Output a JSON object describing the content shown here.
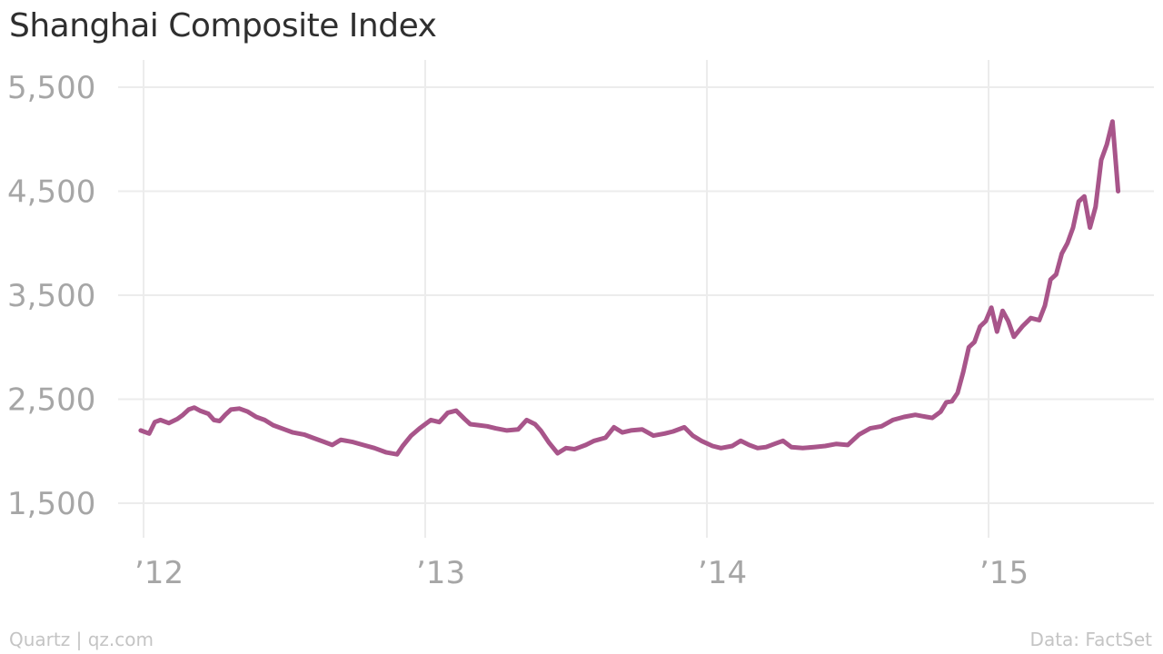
{
  "title": "Shanghai Composite Index",
  "footer": {
    "source_left": "Quartz | qz.com",
    "source_right": "Data: FactSet"
  },
  "colors": {
    "line": "#a8558a",
    "grid": "#ececec",
    "tick_text": "#a6a6a6",
    "title_text": "#2f2f2f"
  },
  "chart_data": {
    "type": "line",
    "title": "Shanghai Composite Index",
    "xlabel": "",
    "ylabel": "",
    "y_ticks": [
      {
        "value": 1500,
        "label": "1,500"
      },
      {
        "value": 2500,
        "label": "2,500"
      },
      {
        "value": 3500,
        "label": "3,500"
      },
      {
        "value": 4500,
        "label": "4,500"
      },
      {
        "value": 5500,
        "label": "5,500"
      }
    ],
    "x_ticks": [
      {
        "value": 2012.0,
        "label": "’12"
      },
      {
        "value": 2013.0,
        "label": "’13"
      },
      {
        "value": 2014.0,
        "label": "’14"
      },
      {
        "value": 2015.0,
        "label": "’15"
      }
    ],
    "ylim": [
      1500,
      5500
    ],
    "grid": true,
    "legend": "none",
    "series": [
      {
        "x": [
          2011.99,
          2012.02,
          2012.04,
          2012.06,
          2012.09,
          2012.12,
          2012.14,
          2012.16,
          2012.18,
          2012.2,
          2012.23,
          2012.25,
          2012.27,
          2012.29,
          2012.31,
          2012.34,
          2012.37,
          2012.4,
          2012.43,
          2012.46,
          2012.5,
          2012.53,
          2012.57,
          2012.6,
          2012.64,
          2012.67,
          2012.7,
          2012.74,
          2012.78,
          2012.82,
          2012.86,
          2012.9,
          2012.92,
          2012.95,
          2012.98,
          2013.02,
          2013.05,
          2013.08,
          2013.11,
          2013.14,
          2013.16,
          2013.19,
          2013.22,
          2013.25,
          2013.29,
          2013.33,
          2013.36,
          2013.39,
          2013.41,
          2013.44,
          2013.47,
          2013.5,
          2013.53,
          2013.57,
          2013.6,
          2013.64,
          2013.67,
          2013.7,
          2013.73,
          2013.77,
          2013.81,
          2013.85,
          2013.88,
          2013.92,
          2013.95,
          2013.98,
          2014.02,
          2014.05,
          2014.09,
          2014.12,
          2014.15,
          2014.18,
          2014.21,
          2014.24,
          2014.27,
          2014.3,
          2014.34,
          2014.38,
          2014.42,
          2014.46,
          2014.5,
          2014.54,
          2014.58,
          2014.62,
          2014.66,
          2014.7,
          2014.74,
          2014.78,
          2014.8,
          2014.83,
          2014.85,
          2014.87,
          2014.89,
          2014.91,
          2014.93,
          2014.95,
          2014.97,
          2014.99,
          2015.01,
          2015.03,
          2015.05,
          2015.07,
          2015.09,
          2015.12,
          2015.15,
          2015.18,
          2015.2,
          2015.22,
          2015.24,
          2015.26,
          2015.28,
          2015.3,
          2015.32,
          2015.34,
          2015.36,
          2015.38,
          2015.4,
          2015.42,
          2015.44,
          2015.46
        ],
        "values": [
          2200,
          2170,
          2280,
          2300,
          2270,
          2310,
          2350,
          2400,
          2420,
          2390,
          2360,
          2300,
          2290,
          2350,
          2400,
          2410,
          2380,
          2330,
          2300,
          2250,
          2210,
          2180,
          2160,
          2130,
          2090,
          2060,
          2110,
          2090,
          2060,
          2030,
          1990,
          1970,
          2050,
          2150,
          2220,
          2300,
          2280,
          2370,
          2390,
          2310,
          2260,
          2250,
          2240,
          2220,
          2200,
          2210,
          2300,
          2260,
          2200,
          2080,
          1980,
          2030,
          2020,
          2060,
          2100,
          2130,
          2230,
          2180,
          2200,
          2210,
          2150,
          2170,
          2190,
          2230,
          2150,
          2100,
          2050,
          2030,
          2050,
          2100,
          2060,
          2030,
          2040,
          2070,
          2100,
          2040,
          2030,
          2040,
          2050,
          2070,
          2060,
          2160,
          2220,
          2240,
          2300,
          2330,
          2350,
          2330,
          2320,
          2380,
          2470,
          2480,
          2560,
          2760,
          3000,
          3050,
          3200,
          3250,
          3380,
          3150,
          3350,
          3250,
          3100,
          3200,
          3280,
          3260,
          3400,
          3650,
          3700,
          3900,
          4000,
          4150,
          4400,
          4450,
          4150,
          4350,
          4800,
          4950,
          5170,
          4500
        ]
      }
    ]
  }
}
